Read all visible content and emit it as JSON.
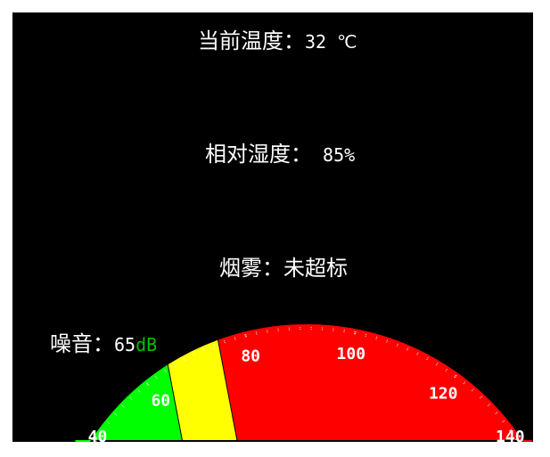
{
  "temperature": {
    "label": "当前温度：",
    "value": "32 ℃"
  },
  "humidity": {
    "label": "相对湿度：",
    "value": " 85%"
  },
  "smoke": {
    "label": "烟雾：",
    "status": "未超标"
  },
  "noise": {
    "label": "噪音：",
    "value": "65",
    "unit": "dB",
    "unit_color": "#00c000"
  },
  "gauge": {
    "min": 40,
    "max": 140,
    "ticks": [
      "40",
      "60",
      "80",
      "100",
      "120",
      "140"
    ],
    "zones": [
      {
        "from": 40,
        "to": 65,
        "color": "#00ff00"
      },
      {
        "from": 65,
        "to": 75,
        "color": "#ffff00"
      },
      {
        "from": 75,
        "to": 140,
        "color": "#ff0000"
      }
    ],
    "background": "#000000",
    "text_color": "#ffffff"
  }
}
